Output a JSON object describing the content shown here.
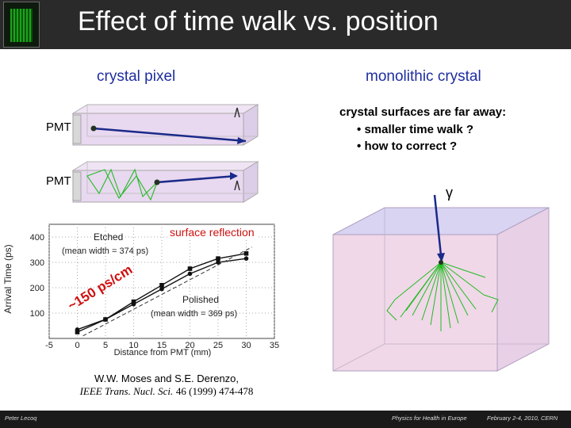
{
  "slide": {
    "title": "Effect of time walk vs. position",
    "left_heading": "crystal pixel",
    "right_heading": "monolithic crystal",
    "pmt_label_top": "PMT",
    "pmt_label_bottom": "PMT",
    "gamma_symbol": "γ",
    "crystal_notes": {
      "title": "crystal surfaces are far away:",
      "bullets": [
        "smaller time walk ?",
        "how to correct ?"
      ],
      "bullet_char": "•"
    },
    "surface_reflection_label": "surface reflection",
    "slope_annotation": "~150 ps/cm",
    "citation": {
      "authors": "W.W. Moses and S.E. Derenzo,",
      "journal": "IEEE Trans. Nucl. Sci.",
      "details": "46 (1999) 474-478"
    },
    "footer": {
      "author": "Peter Lecoq",
      "event": "Physics for Health in Europe",
      "date": "February 2-4, 2010, CERN"
    },
    "colors": {
      "header_bg": "#2a2a2a",
      "heading_blue": "#1e2ea0",
      "reflection_red": "#d01010",
      "ray_green": "#22bb22",
      "arrow_navy": "#1a2a88",
      "crystal_fill": "#e8d8f0"
    }
  },
  "chart_data": {
    "type": "line",
    "xlabel": "Distance from PMT (mm)",
    "ylabel": "Arrival Time (ps)",
    "xlim": [
      -5,
      35
    ],
    "ylim": [
      0,
      450
    ],
    "x_ticks": [
      "-5",
      "0",
      "5",
      "10",
      "15",
      "20",
      "25",
      "30",
      "35"
    ],
    "y_ticks": [
      "100",
      "200",
      "300",
      "400"
    ],
    "annotations": [
      "Etched",
      "(mean width = 374 ps)",
      "Polished",
      "(mean width = 369 ps)"
    ],
    "series": [
      {
        "name": "Etched",
        "x": [
          0,
          5,
          10,
          15,
          20,
          25,
          30
        ],
        "y": [
          35,
          75,
          135,
          195,
          255,
          300,
          315
        ]
      },
      {
        "name": "Polished",
        "x": [
          0,
          5,
          10,
          15,
          20,
          25,
          30
        ],
        "y": [
          25,
          75,
          145,
          210,
          275,
          315,
          335
        ]
      }
    ]
  }
}
